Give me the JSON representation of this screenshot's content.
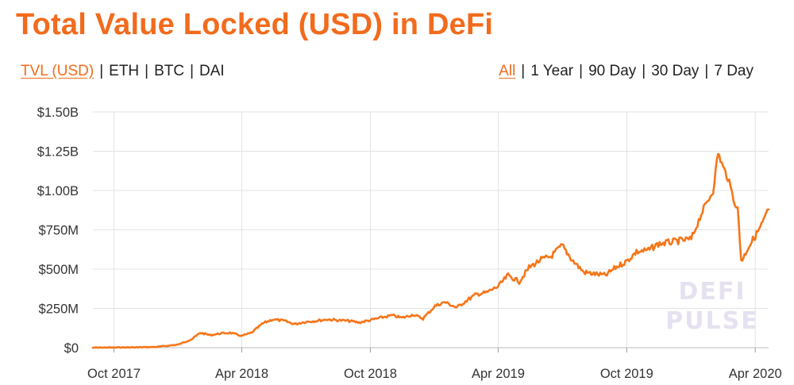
{
  "title": "Total Value Locked (USD) in DeFi",
  "metric_tabs": [
    {
      "label": "TVL (USD)",
      "active": true
    },
    {
      "label": "ETH",
      "active": false
    },
    {
      "label": "BTC",
      "active": false
    },
    {
      "label": "DAI",
      "active": false
    }
  ],
  "range_tabs": [
    {
      "label": "All",
      "active": true
    },
    {
      "label": "1 Year",
      "active": false
    },
    {
      "label": "90 Day",
      "active": false
    },
    {
      "label": "30 Day",
      "active": false
    },
    {
      "label": "7 Day",
      "active": false
    }
  ],
  "separator": "|",
  "colors": {
    "accent": "#f26b1d",
    "line": "#f5761a",
    "grid": "#e3e3e3",
    "watermark": "#e6e1ef"
  },
  "watermark": [
    "DEFI",
    "PULSE"
  ],
  "chart_data": {
    "type": "line",
    "title": "Total Value Locked (USD) in DeFi",
    "xlabel": "",
    "ylabel": "",
    "x_range": [
      "2017-09-01",
      "2020-04-20"
    ],
    "ylim": [
      0,
      1500000000
    ],
    "y_ticks": [
      {
        "value": 0,
        "label": "$0"
      },
      {
        "value": 250000000,
        "label": "$250M"
      },
      {
        "value": 500000000,
        "label": "$500M"
      },
      {
        "value": 750000000,
        "label": "$750M"
      },
      {
        "value": 1000000000,
        "label": "$1.00B"
      },
      {
        "value": 1250000000,
        "label": "$1.25B"
      },
      {
        "value": 1500000000,
        "label": "$1.50B"
      }
    ],
    "x_ticks": [
      {
        "date": "2017-10-01",
        "label": "Oct 2017"
      },
      {
        "date": "2018-04-01",
        "label": "Apr 2018"
      },
      {
        "date": "2018-10-01",
        "label": "Oct 2018"
      },
      {
        "date": "2019-04-01",
        "label": "Apr 2019"
      },
      {
        "date": "2019-10-01",
        "label": "Oct 2019"
      },
      {
        "date": "2020-04-01",
        "label": "Apr 2020"
      }
    ],
    "grid": true,
    "series": [
      {
        "points": [
          [
            "2017-09-01",
            0
          ],
          [
            "2017-10-01",
            1000000
          ],
          [
            "2017-11-01",
            2000000
          ],
          [
            "2017-12-01",
            5000000
          ],
          [
            "2018-01-01",
            20000000
          ],
          [
            "2018-01-20",
            55000000
          ],
          [
            "2018-02-01",
            95000000
          ],
          [
            "2018-02-15",
            80000000
          ],
          [
            "2018-03-01",
            90000000
          ],
          [
            "2018-03-15",
            95000000
          ],
          [
            "2018-04-01",
            75000000
          ],
          [
            "2018-04-15",
            95000000
          ],
          [
            "2018-05-01",
            155000000
          ],
          [
            "2018-05-15",
            180000000
          ],
          [
            "2018-06-01",
            170000000
          ],
          [
            "2018-06-15",
            150000000
          ],
          [
            "2018-07-01",
            165000000
          ],
          [
            "2018-07-15",
            170000000
          ],
          [
            "2018-08-01",
            180000000
          ],
          [
            "2018-08-15",
            175000000
          ],
          [
            "2018-09-01",
            170000000
          ],
          [
            "2018-09-15",
            160000000
          ],
          [
            "2018-10-01",
            175000000
          ],
          [
            "2018-10-15",
            190000000
          ],
          [
            "2018-11-01",
            205000000
          ],
          [
            "2018-11-15",
            190000000
          ],
          [
            "2018-12-01",
            210000000
          ],
          [
            "2018-12-15",
            185000000
          ],
          [
            "2019-01-01",
            265000000
          ],
          [
            "2019-01-15",
            290000000
          ],
          [
            "2019-02-01",
            255000000
          ],
          [
            "2019-02-15",
            300000000
          ],
          [
            "2019-03-01",
            340000000
          ],
          [
            "2019-03-15",
            350000000
          ],
          [
            "2019-04-01",
            390000000
          ],
          [
            "2019-04-15",
            460000000
          ],
          [
            "2019-05-01",
            420000000
          ],
          [
            "2019-05-15",
            510000000
          ],
          [
            "2019-06-01",
            560000000
          ],
          [
            "2019-06-15",
            580000000
          ],
          [
            "2019-07-01",
            650000000
          ],
          [
            "2019-07-15",
            560000000
          ],
          [
            "2019-08-01",
            480000000
          ],
          [
            "2019-08-15",
            470000000
          ],
          [
            "2019-09-01",
            460000000
          ],
          [
            "2019-09-15",
            510000000
          ],
          [
            "2019-10-01",
            550000000
          ],
          [
            "2019-10-15",
            610000000
          ],
          [
            "2019-11-01",
            620000000
          ],
          [
            "2019-11-15",
            660000000
          ],
          [
            "2019-12-01",
            670000000
          ],
          [
            "2019-12-15",
            680000000
          ],
          [
            "2020-01-01",
            690000000
          ],
          [
            "2020-01-15",
            850000000
          ],
          [
            "2020-02-01",
            1000000000
          ],
          [
            "2020-02-08",
            1240000000
          ],
          [
            "2020-02-15",
            1150000000
          ],
          [
            "2020-02-22",
            1080000000
          ],
          [
            "2020-03-01",
            950000000
          ],
          [
            "2020-03-07",
            880000000
          ],
          [
            "2020-03-12",
            560000000
          ],
          [
            "2020-03-15",
            570000000
          ],
          [
            "2020-03-22",
            640000000
          ],
          [
            "2020-04-01",
            710000000
          ],
          [
            "2020-04-10",
            780000000
          ],
          [
            "2020-04-20",
            880000000
          ]
        ]
      }
    ]
  }
}
